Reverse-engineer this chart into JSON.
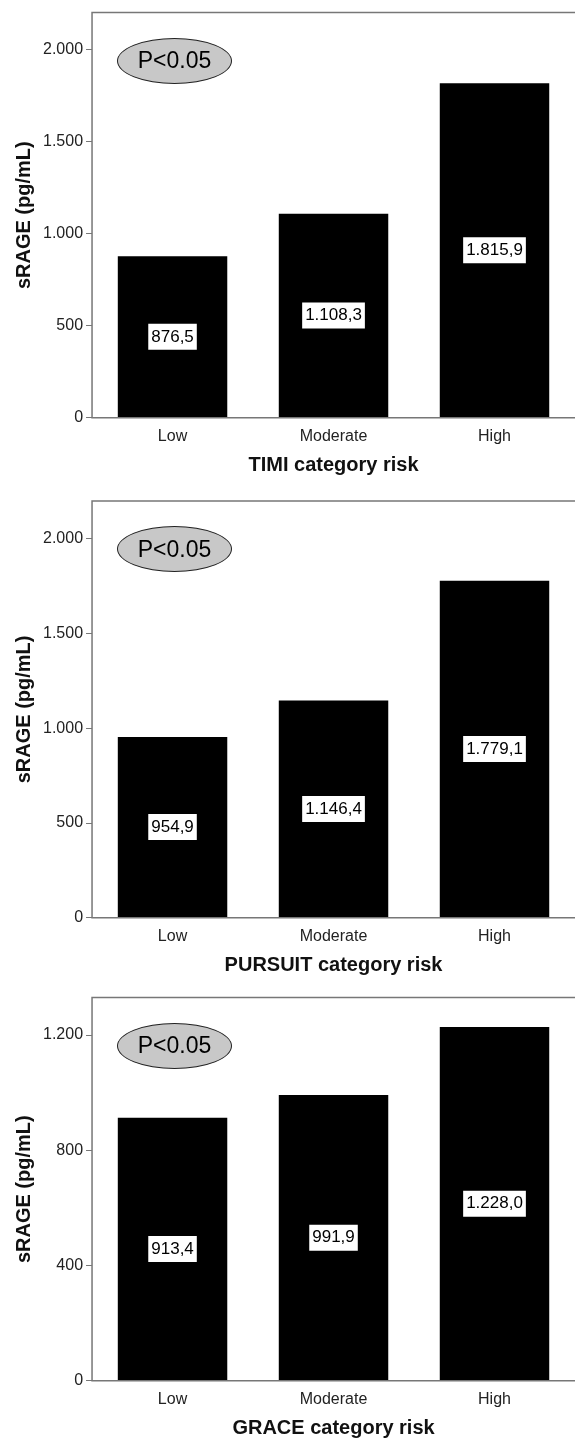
{
  "chart_data": [
    {
      "type": "bar",
      "xlabel": "TIMI category risk",
      "ylabel": "sRAGE (pg/mL)",
      "categories": [
        "Low",
        "Moderate",
        "High"
      ],
      "values": [
        876.5,
        1108.3,
        1815.9
      ],
      "color": "#000000",
      "value_labels": [
        "876,5",
        "1.108,3",
        "1.815,9"
      ],
      "ylim": [
        0,
        2200
      ],
      "yticks": [
        {
          "value": 0,
          "label": "0"
        },
        {
          "value": 500,
          "label": "500"
        },
        {
          "value": 1000,
          "label": "1.000"
        },
        {
          "value": 1500,
          "label": "1.500"
        },
        {
          "value": 2000,
          "label": "2.000"
        }
      ],
      "grid": false,
      "legend": false,
      "annotations": [
        "P<0.05"
      ]
    },
    {
      "type": "bar",
      "xlabel": "PURSUIT category risk",
      "ylabel": "sRAGE (pg/mL)",
      "categories": [
        "Low",
        "Moderate",
        "High"
      ],
      "values": [
        954.9,
        1146.4,
        1779.1
      ],
      "color": "#000000",
      "value_labels": [
        "954,9",
        "1.146,4",
        "1.779,1"
      ],
      "ylim": [
        0,
        2200
      ],
      "yticks": [
        {
          "value": 0,
          "label": "0"
        },
        {
          "value": 500,
          "label": "500"
        },
        {
          "value": 1000,
          "label": "1.000"
        },
        {
          "value": 1500,
          "label": "1.500"
        },
        {
          "value": 2000,
          "label": "2.000"
        }
      ],
      "grid": false,
      "legend": false,
      "annotations": [
        "P<0.05"
      ]
    },
    {
      "type": "bar",
      "xlabel": "GRACE category risk",
      "ylabel": "sRAGE (pg/mL)",
      "categories": [
        "Low",
        "Moderate",
        "High"
      ],
      "values": [
        913.4,
        991.9,
        1228.0
      ],
      "color": "#000000",
      "value_labels": [
        "913,4",
        "991,9",
        "1.228,0"
      ],
      "ylim": [
        0,
        1330
      ],
      "yticks": [
        {
          "value": 0,
          "label": "0"
        },
        {
          "value": 400,
          "label": "400"
        },
        {
          "value": 800,
          "label": "800"
        },
        {
          "value": 1200,
          "label": "1.200"
        }
      ],
      "grid": false,
      "legend": false,
      "annotations": [
        "P<0.05"
      ]
    }
  ]
}
